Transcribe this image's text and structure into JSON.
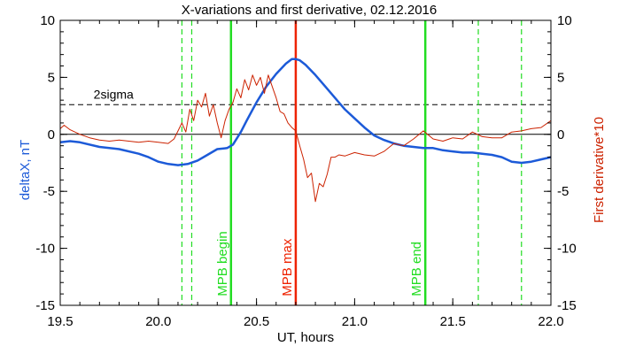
{
  "chart_data": {
    "type": "line",
    "title": "X-variations and first derivative, 02.12.2016",
    "xlabel": "UT, hours",
    "ylabel_left": "deltaX, nT",
    "ylabel_right": "First derivative*10",
    "xlim": [
      19.5,
      22.0
    ],
    "ylim": [
      -15,
      10
    ],
    "x_ticks": [
      19.5,
      20.0,
      20.5,
      21.0,
      21.5,
      22.0
    ],
    "x_tick_labels": [
      "19.5",
      "20.0",
      "20.5",
      "21.0",
      "21.5",
      "22.0"
    ],
    "y_ticks": [
      10,
      5,
      0,
      -5,
      -10,
      -15
    ],
    "y_tick_labels": [
      "10",
      "5",
      "0",
      "-5",
      "-10",
      "-15"
    ],
    "grid": false,
    "colors": {
      "deltaX": "#1c5ad8",
      "derivative": "#cc2200",
      "mpb_begin_end": "#22dd22",
      "mpb_max": "#ee2200",
      "axes": "#000000"
    },
    "series": [
      {
        "key": "deltaX",
        "axis": "left",
        "x": [
          19.5,
          19.55,
          19.6,
          19.7,
          19.8,
          19.9,
          19.95,
          20.0,
          20.05,
          20.1,
          20.15,
          20.2,
          20.25,
          20.3,
          20.35,
          20.38,
          20.42,
          20.45,
          20.5,
          20.55,
          20.6,
          20.65,
          20.68,
          20.7,
          20.72,
          20.75,
          20.8,
          20.85,
          20.9,
          20.95,
          21.0,
          21.05,
          21.1,
          21.15,
          21.2,
          21.25,
          21.3,
          21.35,
          21.4,
          21.45,
          21.5,
          21.55,
          21.6,
          21.65,
          21.7,
          21.75,
          21.8,
          21.85,
          21.9,
          21.95,
          22.0
        ],
        "values": [
          -0.7,
          -0.6,
          -0.7,
          -1.1,
          -1.3,
          -1.7,
          -2.0,
          -2.4,
          -2.6,
          -2.7,
          -2.6,
          -2.3,
          -1.8,
          -1.3,
          -1.2,
          -0.9,
          0.2,
          1.2,
          2.8,
          4.2,
          5.3,
          6.2,
          6.6,
          6.6,
          6.5,
          6.1,
          5.2,
          4.2,
          3.2,
          2.2,
          1.4,
          0.6,
          -0.1,
          -0.5,
          -0.8,
          -1.0,
          -1.1,
          -1.2,
          -1.2,
          -1.4,
          -1.5,
          -1.6,
          -1.6,
          -1.7,
          -1.8,
          -2.0,
          -2.4,
          -2.5,
          -2.4,
          -2.2,
          -2.0
        ]
      },
      {
        "key": "derivative",
        "axis": "right",
        "x": [
          19.5,
          19.52,
          19.55,
          19.6,
          19.65,
          19.7,
          19.75,
          19.8,
          19.85,
          19.9,
          19.95,
          20.0,
          20.05,
          20.08,
          20.1,
          20.12,
          20.14,
          20.16,
          20.18,
          20.2,
          20.22,
          20.24,
          20.26,
          20.28,
          20.3,
          20.32,
          20.34,
          20.36,
          20.38,
          20.4,
          20.42,
          20.44,
          20.46,
          20.48,
          20.5,
          20.52,
          20.54,
          20.56,
          20.58,
          20.6,
          20.62,
          20.64,
          20.66,
          20.68,
          20.7,
          20.72,
          20.74,
          20.76,
          20.78,
          20.8,
          20.82,
          20.84,
          20.86,
          20.88,
          20.9,
          20.92,
          20.95,
          21.0,
          21.05,
          21.1,
          21.15,
          21.2,
          21.25,
          21.3,
          21.35,
          21.4,
          21.45,
          21.5,
          21.55,
          21.6,
          21.65,
          21.7,
          21.75,
          21.8,
          21.85,
          21.9,
          21.95,
          22.0
        ],
        "values": [
          0.5,
          0.8,
          0.4,
          0.0,
          -0.3,
          -0.5,
          -0.6,
          -0.5,
          -0.6,
          -0.7,
          -0.6,
          -0.7,
          -0.8,
          -0.4,
          0.3,
          1.0,
          0.2,
          2.2,
          1.2,
          3.0,
          2.4,
          3.6,
          1.6,
          2.6,
          1.0,
          -0.3,
          1.2,
          2.2,
          2.8,
          4.0,
          3.2,
          4.8,
          3.9,
          5.2,
          4.3,
          5.0,
          3.6,
          5.2,
          4.2,
          3.2,
          2.0,
          1.8,
          1.0,
          0.6,
          0.3,
          -1.0,
          -2.2,
          -3.8,
          -3.4,
          -5.9,
          -4.3,
          -4.6,
          -3.5,
          -2.0,
          -2.0,
          -1.8,
          -1.9,
          -1.6,
          -1.8,
          -1.9,
          -1.5,
          -0.8,
          -1.0,
          -0.4,
          0.3,
          -0.4,
          -0.6,
          -0.3,
          -0.4,
          0.2,
          -0.2,
          -0.3,
          -0.3,
          0.2,
          0.3,
          0.5,
          0.6,
          1.2
        ]
      }
    ],
    "reference_lines": {
      "zero": 0,
      "two_sigma": {
        "value": 2.6,
        "label": "2sigma"
      }
    },
    "markers": [
      {
        "x": 20.37,
        "label": "MPB begin",
        "style": "solid",
        "color_key": "mpb_begin_end"
      },
      {
        "x": 20.7,
        "label": "MPB max",
        "style": "solid",
        "color_key": "mpb_max"
      },
      {
        "x": 21.36,
        "label": "MPB end",
        "style": "solid",
        "color_key": "mpb_begin_end"
      },
      {
        "x": 20.12,
        "label": "",
        "style": "dashed",
        "color_key": "mpb_begin_end"
      },
      {
        "x": 20.17,
        "label": "",
        "style": "dashed",
        "color_key": "mpb_begin_end"
      },
      {
        "x": 21.63,
        "label": "",
        "style": "dashed",
        "color_key": "mpb_begin_end"
      },
      {
        "x": 21.85,
        "label": "",
        "style": "dashed",
        "color_key": "mpb_begin_end"
      }
    ]
  }
}
